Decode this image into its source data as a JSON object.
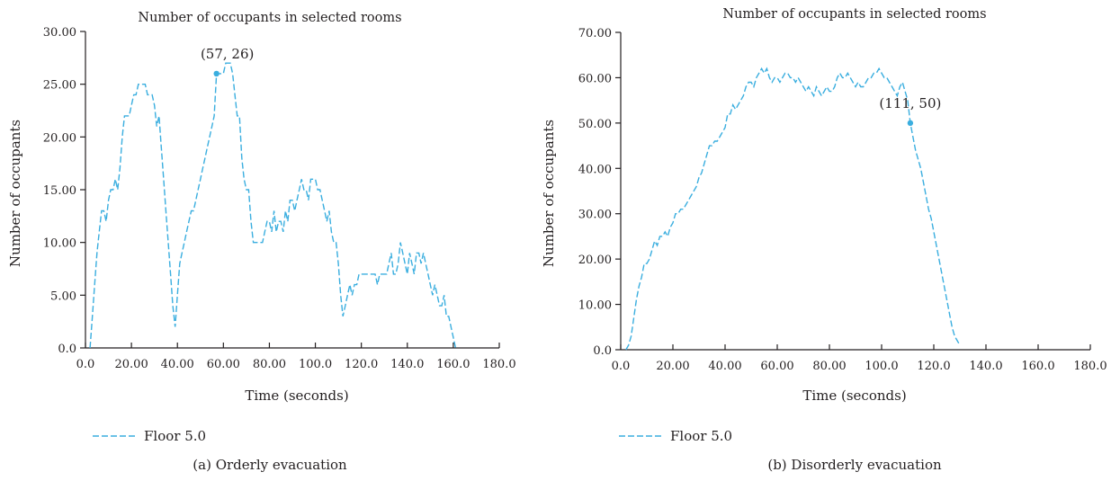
{
  "chart_data": [
    {
      "type": "line",
      "caption": "(a)  Orderly evacuation",
      "title": "Number of occupants in selected rooms",
      "xlabel": "Time (seconds)",
      "ylabel": "Number of occupants",
      "xlim": [
        0,
        180
      ],
      "ylim": [
        0,
        30
      ],
      "xticks": [
        "0.0",
        "20.00",
        "40.00",
        "60.00",
        "80.00",
        "100.0",
        "120.0",
        "140.0",
        "160.0",
        "180.0"
      ],
      "yticks": [
        "0.0",
        "5.00",
        "10.00",
        "15.00",
        "20.00",
        "25.00",
        "30.00"
      ],
      "legend": "bottom-left",
      "line_color": "#3aaedf",
      "annotation": {
        "label": "(57, 26)",
        "x": 57,
        "y": 26
      },
      "series": [
        {
          "name": "Floor 5.0",
          "x": [
            2,
            3,
            4,
            5,
            6,
            7,
            8,
            9,
            10,
            11,
            12,
            13,
            14,
            15,
            16,
            17,
            18,
            19,
            20,
            21,
            22,
            23,
            24,
            25,
            26,
            27,
            28,
            29,
            30,
            31,
            32,
            33,
            34,
            35,
            36,
            37,
            38,
            39,
            40,
            41,
            42,
            43,
            44,
            45,
            46,
            47,
            48,
            49,
            50,
            51,
            52,
            53,
            54,
            55,
            56,
            57,
            58,
            59,
            60,
            61,
            62,
            63,
            64,
            65,
            66,
            67,
            68,
            69,
            70,
            71,
            72,
            73,
            74,
            75,
            76,
            77,
            78,
            79,
            80,
            81,
            82,
            83,
            84,
            85,
            86,
            87,
            88,
            89,
            90,
            91,
            92,
            93,
            94,
            95,
            96,
            97,
            98,
            99,
            100,
            101,
            102,
            103,
            104,
            105,
            106,
            107,
            108,
            109,
            110,
            111,
            112,
            113,
            114,
            115,
            116,
            117,
            118,
            119,
            120,
            121,
            122,
            123,
            124,
            125,
            126,
            127,
            128,
            129,
            130,
            131,
            132,
            133,
            134,
            135,
            136,
            137,
            138,
            139,
            140,
            141,
            142,
            143,
            144,
            145,
            146,
            147,
            148,
            149,
            150,
            151,
            152,
            153,
            154,
            155,
            156,
            157,
            158,
            159,
            160,
            161
          ],
          "y": [
            0,
            3,
            6,
            9,
            11,
            13,
            13,
            12,
            14,
            15,
            15,
            16,
            15,
            17,
            20,
            22,
            22,
            22,
            23,
            24,
            24,
            25,
            25,
            25,
            25,
            24,
            24,
            24,
            23,
            21,
            22,
            19,
            16,
            13,
            10,
            7,
            4,
            2,
            5,
            8,
            9,
            10,
            11,
            12,
            13,
            13,
            14,
            15,
            16,
            17,
            18,
            19,
            20,
            21,
            22,
            26,
            26,
            26,
            26,
            27,
            27,
            27,
            26,
            24,
            22,
            22,
            18,
            16,
            15,
            15,
            12,
            10,
            10,
            10,
            10,
            10,
            11,
            12,
            12,
            11,
            13,
            11,
            12,
            12,
            11,
            13,
            12,
            14,
            14,
            13,
            14,
            15,
            16,
            15,
            15,
            14,
            16,
            16,
            16,
            15,
            15,
            14,
            13,
            12,
            13,
            11,
            10,
            10,
            8,
            5,
            3,
            4,
            5,
            6,
            5,
            6,
            6,
            7,
            7,
            7,
            7,
            7,
            7,
            7,
            7,
            6,
            7,
            7,
            7,
            7,
            8,
            9,
            7,
            7,
            8,
            10,
            9,
            8,
            7,
            9,
            8,
            7,
            9,
            9,
            8,
            9,
            8,
            7,
            6,
            5,
            6,
            5,
            4,
            4,
            5,
            3,
            3,
            2,
            1,
            0
          ]
        }
      ]
    },
    {
      "type": "line",
      "caption": "(b)  Disorderly evacuation",
      "title": "Number of occupants in selected rooms",
      "xlabel": "Time (seconds)",
      "ylabel": "Number of occupants",
      "xlim": [
        0,
        180
      ],
      "ylim": [
        0,
        70
      ],
      "xticks": [
        "0.0",
        "20.00",
        "40.00",
        "60.00",
        "80.00",
        "100.0",
        "120.0",
        "140.0",
        "160.0",
        "180.0"
      ],
      "yticks": [
        "0.0",
        "10.00",
        "20.00",
        "30.00",
        "40.00",
        "50.00",
        "60.00",
        "70.00"
      ],
      "legend": "bottom-left",
      "line_color": "#3aaedf",
      "annotation": {
        "label": "(111, 50)",
        "x": 111,
        "y": 50
      },
      "series": [
        {
          "name": "Floor 5.0",
          "x": [
            2,
            3,
            4,
            5,
            6,
            7,
            8,
            9,
            10,
            11,
            12,
            13,
            14,
            15,
            16,
            17,
            18,
            19,
            20,
            21,
            22,
            23,
            24,
            25,
            26,
            27,
            28,
            29,
            30,
            31,
            32,
            33,
            34,
            35,
            36,
            37,
            38,
            39,
            40,
            41,
            42,
            43,
            44,
            45,
            46,
            47,
            48,
            49,
            50,
            51,
            52,
            53,
            54,
            55,
            56,
            57,
            58,
            59,
            60,
            61,
            62,
            63,
            64,
            65,
            66,
            67,
            68,
            69,
            70,
            71,
            72,
            73,
            74,
            75,
            76,
            77,
            78,
            79,
            80,
            81,
            82,
            83,
            84,
            85,
            86,
            87,
            88,
            89,
            90,
            91,
            92,
            93,
            94,
            95,
            96,
            97,
            98,
            99,
            100,
            101,
            102,
            103,
            104,
            105,
            106,
            107,
            108,
            109,
            110,
            111,
            112,
            113,
            114,
            115,
            116,
            117,
            118,
            119,
            120,
            121,
            122,
            123,
            124,
            125,
            126,
            127,
            128,
            129,
            130
          ],
          "y": [
            0,
            1,
            3,
            7,
            11,
            14,
            16,
            19,
            19,
            20,
            22,
            24,
            23,
            25,
            25,
            26,
            25,
            27,
            28,
            30,
            30,
            31,
            31,
            32,
            33,
            34,
            35,
            36,
            38,
            39,
            41,
            43,
            45,
            45,
            46,
            46,
            47,
            48,
            49,
            52,
            52,
            54,
            53,
            54,
            55,
            56,
            58,
            59,
            59,
            58,
            60,
            61,
            62,
            61,
            62,
            60,
            59,
            60,
            60,
            59,
            60,
            61,
            61,
            60,
            60,
            59,
            60,
            59,
            58,
            57,
            58,
            57,
            56,
            58,
            57,
            56,
            57,
            58,
            57,
            57,
            58,
            60,
            61,
            60,
            60,
            61,
            60,
            59,
            58,
            59,
            58,
            58,
            59,
            60,
            60,
            61,
            61,
            62,
            61,
            60,
            60,
            59,
            58,
            57,
            56,
            58,
            59,
            57,
            55,
            50,
            47,
            44,
            42,
            40,
            37,
            34,
            31,
            29,
            26,
            23,
            20,
            17,
            14,
            11,
            8,
            5,
            3,
            2,
            1
          ]
        }
      ]
    }
  ]
}
